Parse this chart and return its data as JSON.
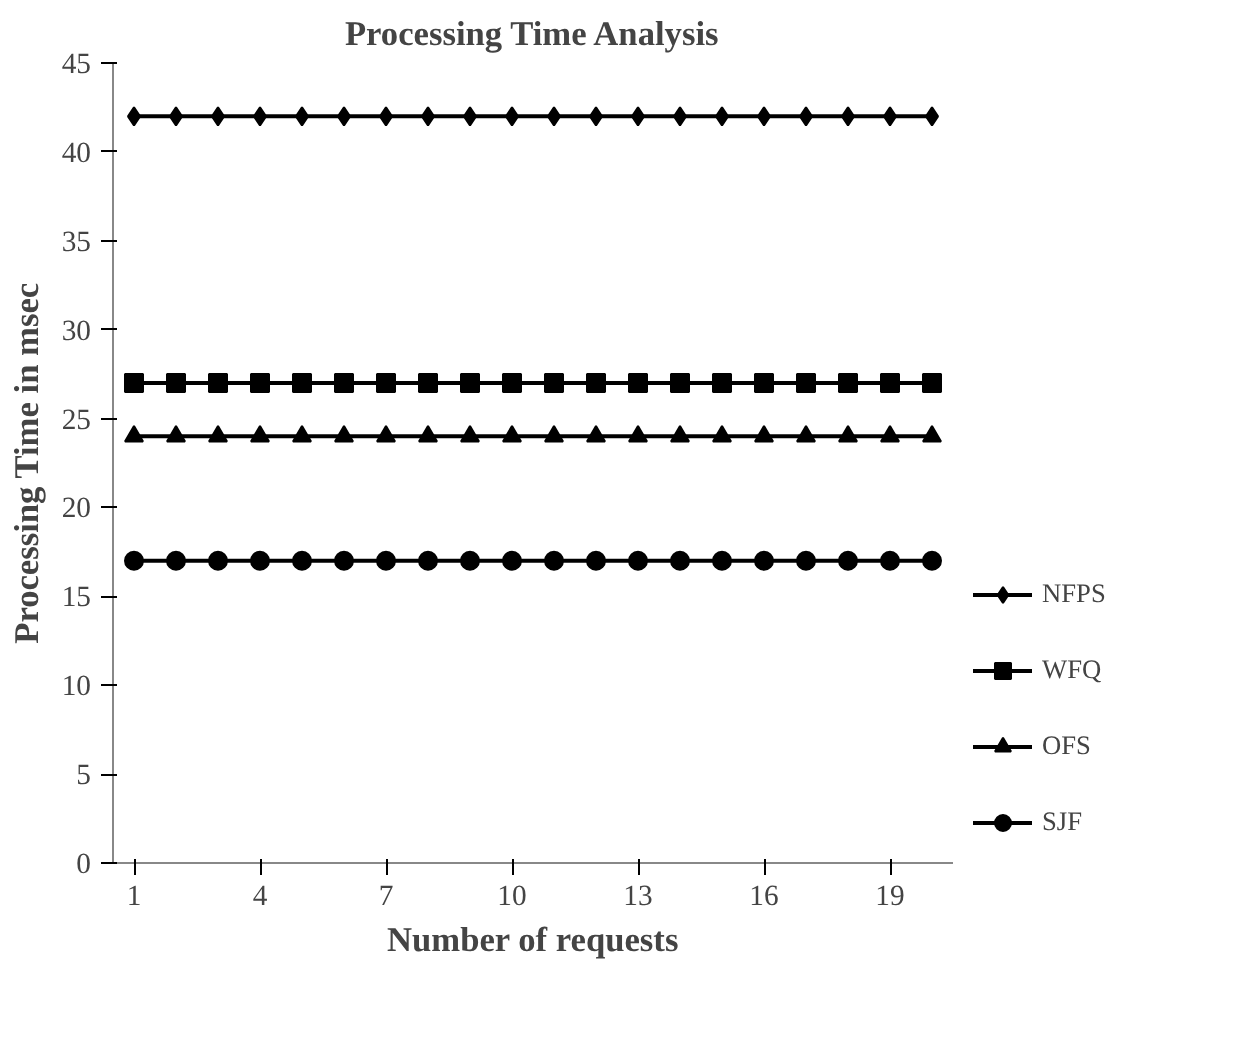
{
  "chart_data": {
    "type": "line",
    "title": "Processing Time Analysis",
    "xlabel": "Number of requests",
    "ylabel": "Processing Time in msec",
    "x": [
      1,
      2,
      3,
      4,
      5,
      6,
      7,
      8,
      9,
      10,
      11,
      12,
      13,
      14,
      15,
      16,
      17,
      18,
      19,
      20
    ],
    "xlim": [
      0.5,
      20.5
    ],
    "xticks": [
      1,
      4,
      7,
      10,
      13,
      16,
      19
    ],
    "ylim": [
      0,
      45
    ],
    "yticks": [
      0,
      5,
      10,
      15,
      20,
      25,
      30,
      35,
      40,
      45
    ],
    "grid": false,
    "legend": "right",
    "line_style": "solid",
    "series": [
      {
        "name": "NFPS",
        "color": "#000000",
        "marker": "diamond",
        "values": [
          42,
          42,
          42,
          42,
          42,
          42,
          42,
          42,
          42,
          42,
          42,
          42,
          42,
          42,
          42,
          42,
          42,
          42,
          42,
          42
        ]
      },
      {
        "name": "WFQ",
        "color": "#000000",
        "marker": "square",
        "values": [
          27,
          27,
          27,
          27,
          27,
          27,
          27,
          27,
          27,
          27,
          27,
          27,
          27,
          27,
          27,
          27,
          27,
          27,
          27,
          27
        ]
      },
      {
        "name": "OFS",
        "color": "#000000",
        "marker": "triangle",
        "values": [
          24,
          24,
          24,
          24,
          24,
          24,
          24,
          24,
          24,
          24,
          24,
          24,
          24,
          24,
          24,
          24,
          24,
          24,
          24,
          24
        ]
      },
      {
        "name": "SJF",
        "color": "#000000",
        "marker": "circle",
        "values": [
          17,
          17,
          17,
          17,
          17,
          17,
          17,
          17,
          17,
          17,
          17,
          17,
          17,
          17,
          17,
          17,
          17,
          17,
          17,
          17
        ]
      }
    ]
  }
}
